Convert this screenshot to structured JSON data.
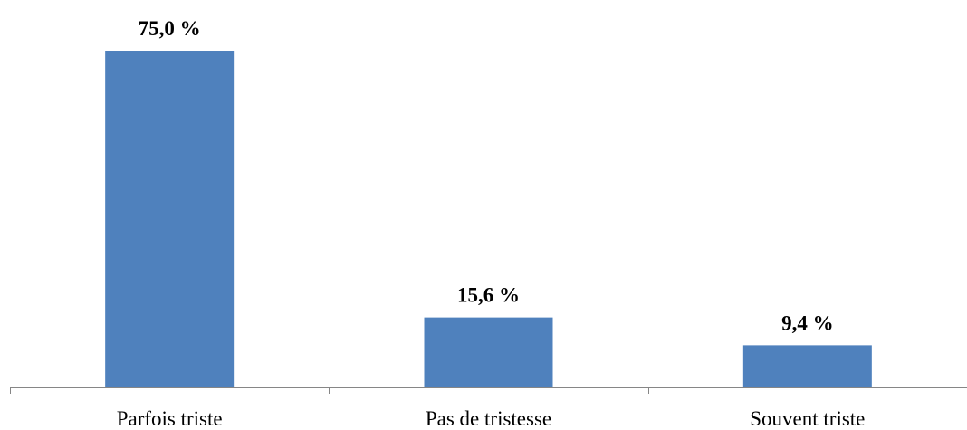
{
  "chart_data": {
    "type": "bar",
    "categories": [
      "Parfois triste",
      "Pas de tristesse",
      "Souvent triste"
    ],
    "values": [
      75.0,
      15.6,
      9.4
    ],
    "data_labels": [
      "75,0 %",
      "15,6 %",
      "9,4 %"
    ],
    "ylim": [
      0,
      75
    ],
    "grid": false,
    "legend": "none",
    "bar_color": "#4F81BD",
    "axis_color": "#868686"
  }
}
